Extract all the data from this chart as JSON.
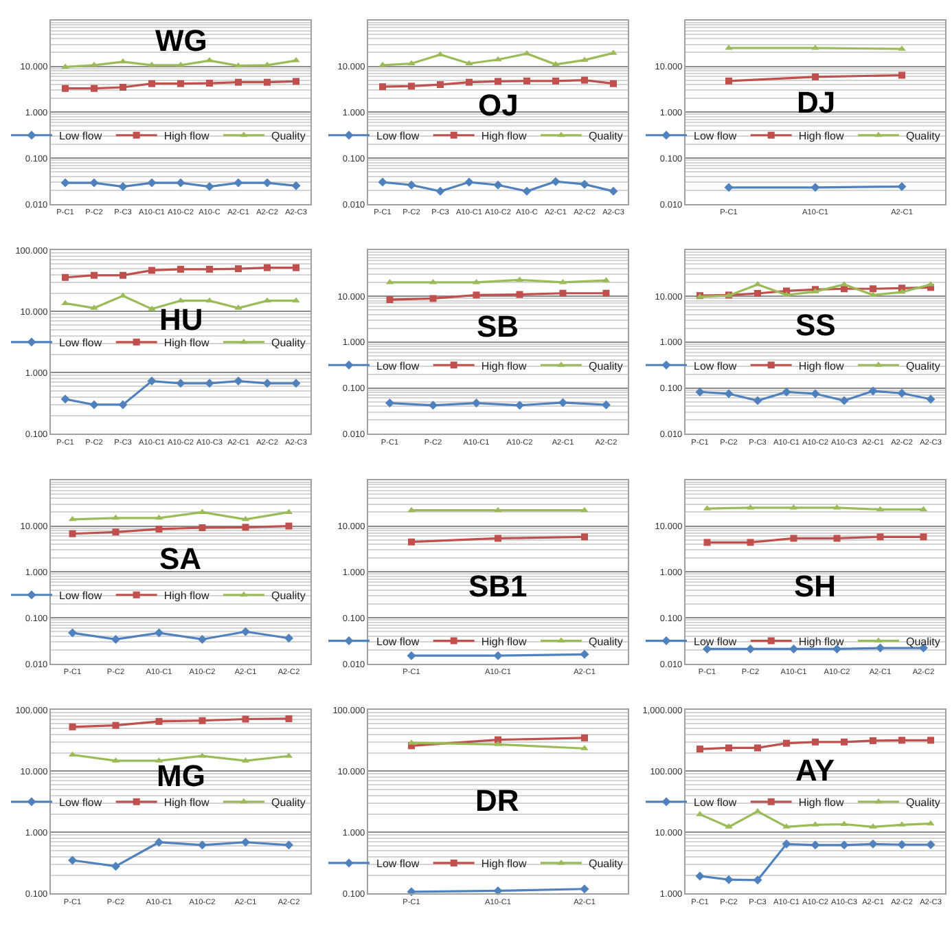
{
  "chart_data": [
    {
      "type": "line",
      "title": "WG",
      "categories": [
        "P-C1",
        "P-C2",
        "P-C3",
        "A10-C1",
        "A10-C2",
        "A10-C",
        "A2-C1",
        "A2-C2",
        "A2-C3"
      ],
      "log": true,
      "grid": "y",
      "legend": "center",
      "ylim": [
        0.01,
        100
      ],
      "yticks": [
        {
          "value": 0.01,
          "label": "0.010"
        },
        {
          "value": 0.1,
          "label": "0.100"
        },
        {
          "value": 1,
          "label": "1.000"
        },
        {
          "value": 10,
          "label": "10.000"
        }
      ],
      "series": [
        {
          "name": "Low flow",
          "color": "#4f81bd",
          "marker": "diamond",
          "values": [
            0.029,
            0.029,
            0.024,
            0.029,
            0.029,
            0.024,
            0.029,
            0.029,
            0.025
          ]
        },
        {
          "name": "High flow",
          "color": "#c0504d",
          "marker": "square",
          "values": [
            3.3,
            3.3,
            3.5,
            4.2,
            4.2,
            4.3,
            4.5,
            4.5,
            4.7
          ]
        },
        {
          "name": "Quality",
          "color": "#9bbb59",
          "marker": "triangle",
          "values": [
            9.7,
            10.6,
            12.6,
            10.6,
            10.6,
            13.4,
            10.3,
            10.6,
            13.4
          ]
        }
      ]
    },
    {
      "type": "line",
      "title": "OJ",
      "categories": [
        "P-C1",
        "P-C2",
        "P-C3",
        "A10-C1",
        "A10-C2",
        "A10-C",
        "A2-C1",
        "A2-C2",
        "A2-C3"
      ],
      "log": true,
      "grid": "y",
      "legend": "center",
      "ylim": [
        0.01,
        100
      ],
      "yticks": [
        {
          "value": 0.01,
          "label": "0.010"
        },
        {
          "value": 0.1,
          "label": "0.100"
        },
        {
          "value": 1,
          "label": "1.000"
        },
        {
          "value": 10,
          "label": "10.000"
        }
      ],
      "series": [
        {
          "name": "Low flow",
          "color": "#4f81bd",
          "marker": "diamond",
          "values": [
            0.03,
            0.026,
            0.019,
            0.03,
            0.026,
            0.019,
            0.031,
            0.027,
            0.019
          ]
        },
        {
          "name": "High flow",
          "color": "#c0504d",
          "marker": "square",
          "values": [
            3.6,
            3.7,
            4.0,
            4.5,
            4.7,
            4.8,
            4.8,
            5.0,
            4.2
          ]
        },
        {
          "name": "Quality",
          "color": "#9bbb59",
          "marker": "triangle",
          "values": [
            10.6,
            11.5,
            18,
            11.5,
            14,
            19,
            11,
            13.7,
            19.5
          ]
        }
      ]
    },
    {
      "type": "line",
      "title": "DJ",
      "categories": [
        "P-C1",
        "A10-C1",
        "A2-C1"
      ],
      "log": true,
      "grid": "y",
      "legend": "center",
      "ylim": [
        0.01,
        100
      ],
      "yticks": [
        {
          "value": 0.01,
          "label": "0.010"
        },
        {
          "value": 0.1,
          "label": "0.100"
        },
        {
          "value": 1,
          "label": "1.000"
        },
        {
          "value": 10,
          "label": "10.000"
        }
      ],
      "series": [
        {
          "name": "Low flow",
          "color": "#4f81bd",
          "marker": "diamond",
          "values": [
            0.023,
            0.023,
            0.024
          ]
        },
        {
          "name": "High flow",
          "color": "#c0504d",
          "marker": "square",
          "values": [
            4.8,
            5.9,
            6.4
          ]
        },
        {
          "name": "Quality",
          "color": "#9bbb59",
          "marker": "triangle",
          "values": [
            25,
            25,
            24
          ]
        }
      ]
    },
    {
      "type": "line",
      "title": "HU",
      "categories": [
        "P-C1",
        "P-C2",
        "P-C3",
        "A10-C1",
        "A10-C2",
        "A10-C3",
        "A2-C1",
        "A2-C2",
        "A2-C3"
      ],
      "log": true,
      "grid": "y",
      "legend": "center",
      "ylim": [
        0.1,
        100
      ],
      "yticks": [
        {
          "value": 0.1,
          "label": "0.100"
        },
        {
          "value": 1,
          "label": "1.000"
        },
        {
          "value": 10,
          "label": "10.000"
        },
        {
          "value": 100,
          "label": "100.000"
        }
      ],
      "series": [
        {
          "name": "Low flow",
          "color": "#4f81bd",
          "marker": "diamond",
          "values": [
            0.37,
            0.3,
            0.3,
            0.73,
            0.67,
            0.67,
            0.73,
            0.67,
            0.67
          ]
        },
        {
          "name": "High flow",
          "color": "#c0504d",
          "marker": "square",
          "values": [
            36,
            39,
            39,
            47,
            49,
            49,
            50,
            52,
            52
          ]
        },
        {
          "name": "Quality",
          "color": "#9bbb59",
          "marker": "triangle",
          "values": [
            13.6,
            11.4,
            18,
            11,
            15,
            15,
            11.4,
            15,
            15
          ]
        }
      ]
    },
    {
      "type": "line",
      "title": "SB",
      "categories": [
        "P-C1",
        "P-C2",
        "A10-C1",
        "A10-C2",
        "A2-C1",
        "A2-C2"
      ],
      "log": true,
      "grid": "y",
      "legend": "center",
      "ylim": [
        0.01,
        100
      ],
      "yticks": [
        {
          "value": 0.01,
          "label": "0.010"
        },
        {
          "value": 0.1,
          "label": "0.100"
        },
        {
          "value": 1,
          "label": "1.000"
        },
        {
          "value": 10,
          "label": "10.000"
        }
      ],
      "series": [
        {
          "name": "Low flow",
          "color": "#4f81bd",
          "marker": "diamond",
          "values": [
            0.047,
            0.042,
            0.047,
            0.042,
            0.048,
            0.043
          ]
        },
        {
          "name": "High flow",
          "color": "#c0504d",
          "marker": "square",
          "values": [
            8.4,
            8.9,
            10.6,
            10.9,
            11.6,
            11.6
          ]
        },
        {
          "name": "Quality",
          "color": "#9bbb59",
          "marker": "triangle",
          "values": [
            20,
            20,
            20,
            22.6,
            20,
            22
          ]
        }
      ]
    },
    {
      "type": "line",
      "title": "SS",
      "categories": [
        "P-C1",
        "P-C2",
        "P-C3",
        "A10-C1",
        "A10-C2",
        "A10-C3",
        "A2-C1",
        "A2-C2",
        "A2-C3"
      ],
      "log": true,
      "grid": "y",
      "legend": "center",
      "ylim": [
        0.01,
        100
      ],
      "yticks": [
        {
          "value": 0.01,
          "label": "0.010"
        },
        {
          "value": 0.1,
          "label": "0.100"
        },
        {
          "value": 1,
          "label": "1.000"
        },
        {
          "value": 10,
          "label": "10.000"
        }
      ],
      "series": [
        {
          "name": "Low flow",
          "color": "#4f81bd",
          "marker": "diamond",
          "values": [
            0.082,
            0.075,
            0.053,
            0.082,
            0.075,
            0.053,
            0.086,
            0.077,
            0.057
          ]
        },
        {
          "name": "High flow",
          "color": "#c0504d",
          "marker": "square",
          "values": [
            10.3,
            10.6,
            11.5,
            13,
            14,
            14.5,
            14.5,
            15,
            15.5
          ]
        },
        {
          "name": "Quality",
          "color": "#9bbb59",
          "marker": "triangle",
          "values": [
            9.7,
            10.3,
            18,
            10.6,
            12.6,
            18,
            10.6,
            12.3,
            18
          ]
        }
      ]
    },
    {
      "type": "line",
      "title": "SA",
      "categories": [
        "P-C1",
        "P-C2",
        "A10-C1",
        "A10-C2",
        "A2-C1",
        "A2-C2"
      ],
      "log": true,
      "grid": "y",
      "legend": "center",
      "ylim": [
        0.01,
        100
      ],
      "yticks": [
        {
          "value": 0.01,
          "label": "0.010"
        },
        {
          "value": 0.1,
          "label": "0.100"
        },
        {
          "value": 1,
          "label": "1.000"
        },
        {
          "value": 10,
          "label": "10.000"
        }
      ],
      "series": [
        {
          "name": "Low flow",
          "color": "#4f81bd",
          "marker": "diamond",
          "values": [
            0.047,
            0.034,
            0.047,
            0.034,
            0.05,
            0.036
          ]
        },
        {
          "name": "High flow",
          "color": "#c0504d",
          "marker": "square",
          "values": [
            6.8,
            7.4,
            8.6,
            9.2,
            9.4,
            10
          ]
        },
        {
          "name": "Quality",
          "color": "#9bbb59",
          "marker": "triangle",
          "values": [
            14,
            15,
            15,
            20,
            14,
            20
          ]
        }
      ]
    },
    {
      "type": "line",
      "title": "SB1",
      "categories": [
        "P-C1",
        "A10-C1",
        "A2-C1"
      ],
      "log": true,
      "grid": "y",
      "legend": "center",
      "ylim": [
        0.01,
        100
      ],
      "yticks": [
        {
          "value": 0.01,
          "label": "0.010"
        },
        {
          "value": 0.1,
          "label": "0.100"
        },
        {
          "value": 1,
          "label": "1.000"
        },
        {
          "value": 10,
          "label": "10.000"
        }
      ],
      "series": [
        {
          "name": "Low flow",
          "color": "#4f81bd",
          "marker": "diamond",
          "values": [
            0.015,
            0.015,
            0.016
          ]
        },
        {
          "name": "High flow",
          "color": "#c0504d",
          "marker": "square",
          "values": [
            4.5,
            5.4,
            5.8
          ]
        },
        {
          "name": "Quality",
          "color": "#9bbb59",
          "marker": "triangle",
          "values": [
            22,
            22,
            22
          ]
        }
      ]
    },
    {
      "type": "line",
      "title": "SH",
      "categories": [
        "P-C1",
        "P-C2",
        "A10-C1",
        "A10-C2",
        "A2-C1",
        "A2-C2"
      ],
      "log": true,
      "grid": "y",
      "legend": "center",
      "ylim": [
        0.01,
        100
      ],
      "yticks": [
        {
          "value": 0.01,
          "label": "0.010"
        },
        {
          "value": 0.1,
          "label": "0.100"
        },
        {
          "value": 1,
          "label": "1.000"
        },
        {
          "value": 10,
          "label": "10.000"
        }
      ],
      "series": [
        {
          "name": "Low flow",
          "color": "#4f81bd",
          "marker": "diamond",
          "values": [
            0.021,
            0.021,
            0.021,
            0.021,
            0.022,
            0.022
          ]
        },
        {
          "name": "High flow",
          "color": "#c0504d",
          "marker": "square",
          "values": [
            4.4,
            4.4,
            5.4,
            5.4,
            5.8,
            5.8
          ]
        },
        {
          "name": "Quality",
          "color": "#9bbb59",
          "marker": "triangle",
          "values": [
            24,
            25,
            25,
            25,
            23,
            23
          ]
        }
      ]
    },
    {
      "type": "line",
      "title": "MG",
      "categories": [
        "P-C1",
        "P-C2",
        "A10-C1",
        "A10-C2",
        "A2-C1",
        "A2-C2"
      ],
      "log": true,
      "grid": "y",
      "legend": "center",
      "ylim": [
        0.1,
        100
      ],
      "yticks": [
        {
          "value": 0.1,
          "label": "0.100"
        },
        {
          "value": 1,
          "label": "1.000"
        },
        {
          "value": 10,
          "label": "10.000"
        },
        {
          "value": 100,
          "label": "100.000"
        }
      ],
      "series": [
        {
          "name": "Low flow",
          "color": "#4f81bd",
          "marker": "diamond",
          "values": [
            0.35,
            0.28,
            0.69,
            0.62,
            0.69,
            0.62
          ]
        },
        {
          "name": "High flow",
          "color": "#c0504d",
          "marker": "square",
          "values": [
            53,
            56,
            65,
            67,
            71,
            72
          ]
        },
        {
          "name": "Quality",
          "color": "#9bbb59",
          "marker": "triangle",
          "values": [
            18.5,
            14.8,
            14.8,
            17.7,
            14.8,
            17.7
          ]
        }
      ]
    },
    {
      "type": "line",
      "title": "DR",
      "categories": [
        "P-C1",
        "A10-C1",
        "A2-C1"
      ],
      "log": true,
      "grid": "y",
      "legend": "center",
      "ylim": [
        0.1,
        100
      ],
      "yticks": [
        {
          "value": 0.1,
          "label": "0.100"
        },
        {
          "value": 1,
          "label": "1.000"
        },
        {
          "value": 10,
          "label": "10.000"
        },
        {
          "value": 100,
          "label": "100.000"
        }
      ],
      "series": [
        {
          "name": "Low flow",
          "color": "#4f81bd",
          "marker": "diamond",
          "values": [
            0.107,
            0.111,
            0.119
          ]
        },
        {
          "name": "High flow",
          "color": "#c0504d",
          "marker": "square",
          "values": [
            26,
            32.6,
            35
          ]
        },
        {
          "name": "Quality",
          "color": "#9bbb59",
          "marker": "triangle",
          "values": [
            29,
            27.4,
            23.5
          ]
        }
      ]
    },
    {
      "type": "line",
      "title": "AY",
      "categories": [
        "P-C1",
        "P-C2",
        "P-C3",
        "A10-C1",
        "A10-C2",
        "A10-C3",
        "A2-C1",
        "A2-C2",
        "A2-C3"
      ],
      "log": true,
      "grid": "y",
      "legend": "center",
      "ylim": [
        1,
        1000
      ],
      "yticks": [
        {
          "value": 1,
          "label": "1.000"
        },
        {
          "value": 10,
          "label": "10.000"
        },
        {
          "value": 100,
          "label": "100.000"
        },
        {
          "value": 1000,
          "label": "1,000.000"
        }
      ],
      "series": [
        {
          "name": "Low flow",
          "color": "#4f81bd",
          "marker": "diamond",
          "values": [
            1.93,
            1.69,
            1.66,
            6.45,
            6.2,
            6.2,
            6.45,
            6.3,
            6.3
          ]
        },
        {
          "name": "High flow",
          "color": "#c0504d",
          "marker": "square",
          "values": [
            230,
            240,
            240,
            286,
            300,
            300,
            315,
            320,
            320
          ]
        },
        {
          "name": "Quality",
          "color": "#9bbb59",
          "marker": "triangle",
          "values": [
            19.7,
            12.3,
            22,
            12.3,
            13.3,
            13.6,
            12.3,
            13.3,
            13.9
          ]
        }
      ]
    }
  ]
}
